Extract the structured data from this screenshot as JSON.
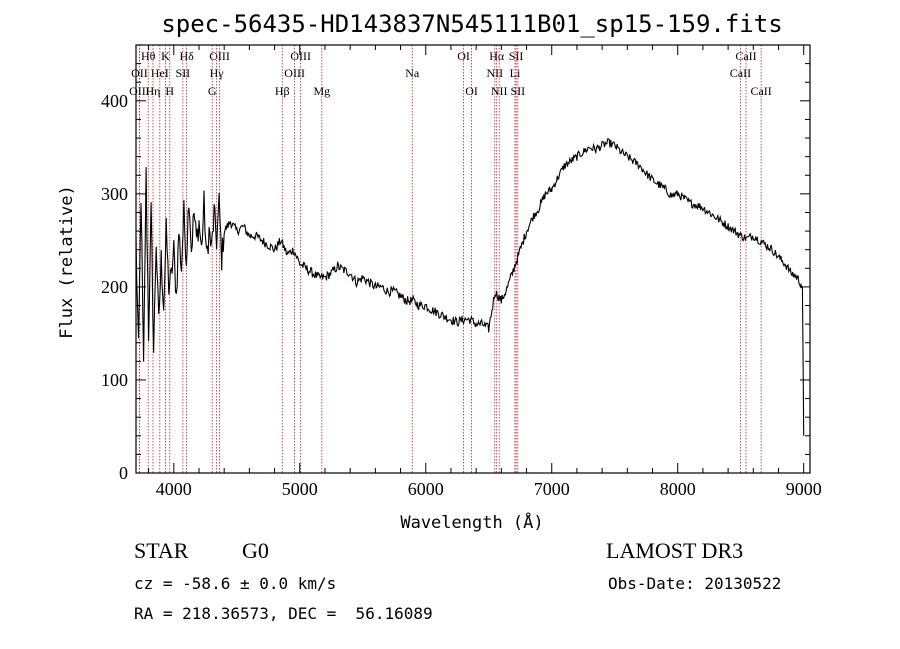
{
  "chart_data": {
    "type": "line",
    "title": "spec-56435-HD143837N545111B01_sp15-159.fits",
    "xlabel": "Wavelength (Å)",
    "ylabel": "Flux (relative)",
    "xlim": [
      3700,
      9050
    ],
    "ylim": [
      0,
      460
    ],
    "x_ticks": [
      4000,
      5000,
      6000,
      7000,
      8000,
      9000
    ],
    "y_ticks": [
      0,
      100,
      200,
      300,
      400
    ],
    "grid": false,
    "series": [
      {
        "x": [
          3700,
          3720,
          3740,
          3760,
          3780,
          3800,
          3820,
          3840,
          3860,
          3880,
          3900,
          3920,
          3940,
          3960,
          3980,
          4000,
          4020,
          4040,
          4060,
          4080,
          4100,
          4120,
          4140,
          4160,
          4180,
          4200,
          4220,
          4240,
          4260,
          4280,
          4300,
          4320,
          4340,
          4360,
          4380,
          4400,
          4450,
          4500,
          4550,
          4600,
          4650,
          4700,
          4750,
          4800,
          4850,
          4900,
          4950,
          5000,
          5050,
          5100,
          5150,
          5200,
          5250,
          5300,
          5350,
          5400,
          5450,
          5500,
          5550,
          5600,
          5650,
          5700,
          5750,
          5800,
          5850,
          5900,
          5950,
          6000,
          6050,
          6100,
          6150,
          6200,
          6250,
          6300,
          6350,
          6400,
          6450,
          6500,
          6550,
          6600,
          6650,
          6700,
          6750,
          6800,
          6850,
          6900,
          6950,
          7000,
          7050,
          7100,
          7150,
          7200,
          7250,
          7300,
          7350,
          7400,
          7450,
          7500,
          7550,
          7600,
          7650,
          7700,
          7750,
          7800,
          7850,
          7900,
          7950,
          8000,
          8050,
          8100,
          8150,
          8200,
          8250,
          8300,
          8350,
          8400,
          8450,
          8500,
          8550,
          8600,
          8650,
          8700,
          8750,
          8800,
          8850,
          8900,
          8950,
          8990,
          9000
        ],
        "y": [
          250,
          130,
          300,
          110,
          320,
          150,
          280,
          130,
          250,
          160,
          230,
          180,
          260,
          200,
          210,
          240,
          190,
          260,
          220,
          280,
          230,
          300,
          240,
          280,
          250,
          270,
          240,
          290,
          230,
          260,
          240,
          280,
          250,
          290,
          230,
          260,
          270,
          260,
          265,
          255,
          255,
          250,
          245,
          240,
          250,
          235,
          240,
          225,
          220,
          215,
          210,
          210,
          215,
          222,
          218,
          215,
          205,
          210,
          205,
          200,
          200,
          195,
          195,
          190,
          185,
          185,
          180,
          180,
          175,
          172,
          168,
          165,
          162,
          165,
          165,
          160,
          160,
          155,
          195,
          185,
          200,
          220,
          240,
          260,
          275,
          285,
          300,
          305,
          318,
          330,
          335,
          340,
          345,
          350,
          348,
          352,
          355,
          352,
          345,
          340,
          335,
          330,
          322,
          315,
          310,
          305,
          298,
          300,
          295,
          290,
          288,
          285,
          280,
          275,
          270,
          265,
          260,
          255,
          252,
          255,
          250,
          245,
          240,
          232,
          225,
          215,
          210,
          200,
          40
        ]
      }
    ],
    "lines": [
      {
        "label": "Hθ",
        "x": 3797,
        "row": 0
      },
      {
        "label": "OII",
        "x": 3727,
        "row": 1
      },
      {
        "label": "OIII",
        "x": 3727,
        "row": 2
      },
      {
        "label": "K",
        "x": 3934,
        "row": 0
      },
      {
        "label": "HeI",
        "x": 3889,
        "row": 1
      },
      {
        "label": "Hη",
        "x": 3835,
        "row": 2
      },
      {
        "label": "Hδ",
        "x": 4102,
        "row": 0
      },
      {
        "label": "SII",
        "x": 4072,
        "row": 1
      },
      {
        "label": "H",
        "x": 3968,
        "row": 2
      },
      {
        "label": "OIII",
        "x": 4363,
        "row": 0
      },
      {
        "label": "Hγ",
        "x": 4340,
        "row": 1
      },
      {
        "label": "G",
        "x": 4305,
        "row": 2
      },
      {
        "label": "OIII",
        "x": 5007,
        "row": 0
      },
      {
        "label": "OIII",
        "x": 4959,
        "row": 1
      },
      {
        "label": "Hβ",
        "x": 4861,
        "row": 2
      },
      {
        "label": "Mg",
        "x": 5175,
        "row": 2
      },
      {
        "label": "Na",
        "x": 5893,
        "row": 1
      },
      {
        "label": "OI",
        "x": 6300,
        "row": 0
      },
      {
        "label": "OI",
        "x": 6364,
        "row": 2
      },
      {
        "label": "Hα",
        "x": 6563,
        "row": 0
      },
      {
        "label": "SII",
        "x": 6717,
        "row": 0
      },
      {
        "label": "NII",
        "x": 6548,
        "row": 1
      },
      {
        "label": "Li",
        "x": 6708,
        "row": 1
      },
      {
        "label": "NII",
        "x": 6583,
        "row": 2
      },
      {
        "label": "SII",
        "x": 6731,
        "row": 2
      },
      {
        "label": "CaII",
        "x": 8542,
        "row": 0
      },
      {
        "label": "CaII",
        "x": 8498,
        "row": 1
      },
      {
        "label": "CaII",
        "x": 8662,
        "row": 2
      }
    ]
  },
  "info": {
    "class": "STAR",
    "subclass": "G0",
    "survey": "LAMOST DR3",
    "cz": "cz = -58.6 ± 0.0 km/s",
    "obs_date": "Obs-Date: 20130522",
    "radec": "RA = 218.36573, DEC =  56.16089"
  },
  "colors": {
    "spectrum": "#000000",
    "lines": "#cc2222"
  }
}
